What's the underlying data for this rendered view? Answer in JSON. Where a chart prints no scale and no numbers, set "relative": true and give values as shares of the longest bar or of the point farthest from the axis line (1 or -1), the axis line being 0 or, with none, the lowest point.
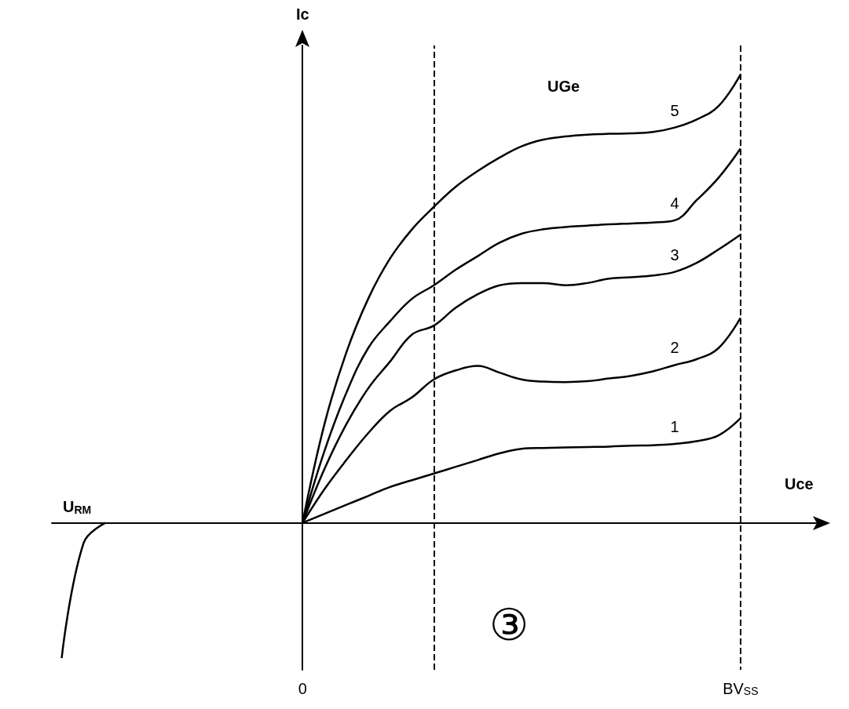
{
  "chart_data": {
    "type": "line",
    "relative": true,
    "xlabel": "Uce",
    "ylabel": "Ic",
    "grid": "x",
    "legend": false,
    "marker": "none",
    "line_style": "solid",
    "categories": [
      null,
      null,
      null,
      null,
      null,
      null,
      null,
      null,
      null,
      null,
      null,
      "0",
      null,
      null,
      null,
      null,
      null,
      null,
      null,
      null,
      null,
      null,
      null,
      null,
      null,
      null,
      null,
      null,
      null,
      null,
      null,
      "BV$_{SS}$",
      null,
      null,
      null
    ],
    "annotations": [
      "UGe",
      "③",
      "U$_{RM}$"
    ],
    "series": [
      {
        "name": "5",
        "color": "#000000",
        "values": [
          null,
          null,
          null,
          null,
          null,
          null,
          null,
          null,
          null,
          null,
          null,
          0,
          0.22,
          0.38,
          0.5,
          0.59,
          0.655,
          0.705,
          0.75,
          0.785,
          0.815,
          0.84,
          0.855,
          0.862,
          0.866,
          0.868,
          0.869,
          0.872,
          0.882,
          0.9,
          0.93,
          1,
          null,
          null,
          null
        ]
      },
      {
        "name": "4",
        "color": "#000000",
        "values": [
          null,
          null,
          null,
          null,
          null,
          null,
          null,
          null,
          null,
          null,
          null,
          0,
          0.16,
          0.29,
          0.39,
          0.45,
          0.5,
          0.53,
          0.565,
          0.595,
          0.625,
          0.645,
          0.655,
          0.66,
          0.663,
          0.666,
          0.668,
          0.67,
          0.675,
          0.72,
          0.77,
          0.835,
          null,
          null,
          null
        ]
      },
      {
        "name": "3",
        "color": "#000000",
        "values": [
          null,
          null,
          null,
          null,
          null,
          null,
          null,
          null,
          null,
          null,
          null,
          0,
          0.12,
          0.22,
          0.3,
          0.36,
          0.42,
          0.44,
          0.48,
          0.51,
          0.53,
          0.535,
          0.535,
          0.53,
          0.535,
          0.545,
          0.548,
          0.552,
          0.56,
          0.58,
          0.61,
          0.643,
          null,
          null,
          null
        ]
      },
      {
        "name": "2",
        "color": "#000000",
        "values": [
          null,
          null,
          null,
          null,
          null,
          null,
          null,
          null,
          null,
          null,
          null,
          0,
          0.075,
          0.14,
          0.2,
          0.25,
          0.28,
          0.32,
          0.34,
          0.35,
          0.335,
          0.32,
          0.315,
          0.314,
          0.316,
          0.322,
          0.328,
          0.338,
          0.352,
          0.365,
          0.39,
          0.457,
          null,
          null,
          null
        ]
      },
      {
        "name": "1",
        "color": "#000000",
        "values": [
          null,
          null,
          null,
          null,
          null,
          null,
          null,
          null,
          null,
          null,
          null,
          0,
          0.02,
          0.04,
          0.06,
          0.08,
          0.095,
          0.11,
          0.125,
          0.14,
          0.155,
          0.165,
          0.167,
          0.168,
          0.169,
          0.17,
          0.172,
          0.173,
          0.176,
          0.182,
          0.195,
          0.233,
          null,
          null,
          null
        ]
      },
      {
        "color": "#000000",
        "values": [
          -0.302,
          -0.045,
          0,
          null,
          null,
          null,
          null,
          null,
          null,
          null,
          null,
          null,
          null,
          null,
          null,
          null,
          null,
          null,
          null,
          null,
          null,
          null,
          null,
          null,
          null,
          null,
          null,
          null,
          null,
          null,
          null,
          null,
          null,
          null,
          null
        ]
      }
    ]
  }
}
